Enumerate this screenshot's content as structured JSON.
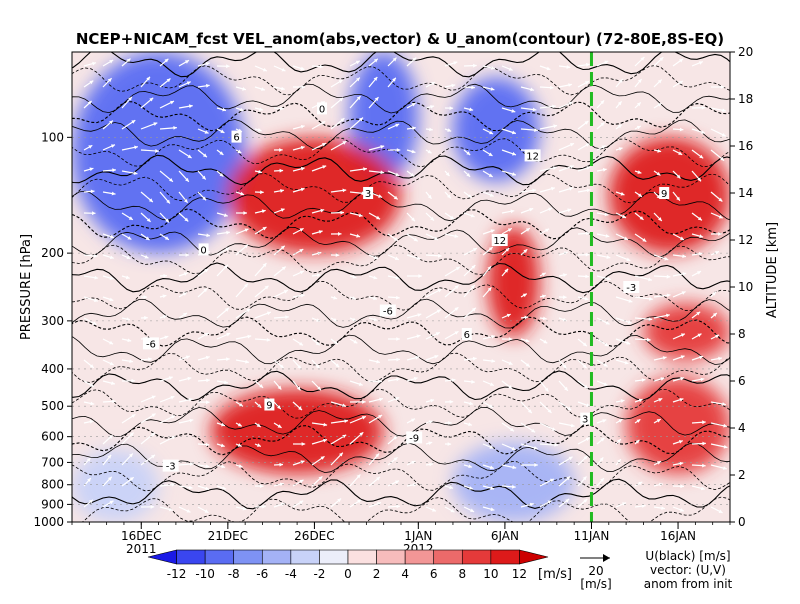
{
  "chart_data": {
    "type": "heatmap",
    "title": "NCEP+NICAM_fcst VEL_anom(abs,vector) & U_anom(contour)   (72-80E,8S-EQ)",
    "ylabel_left": "PRESSURE [hPa]",
    "ylabel_right": "ALTITUDE [km]",
    "pressure_ticks": [
      100,
      200,
      300,
      400,
      500,
      600,
      700,
      800,
      900,
      1000
    ],
    "altitude_ticks": [
      0,
      2,
      4,
      6,
      8,
      10,
      12,
      14,
      16,
      18,
      20
    ],
    "date_ticks": [
      "16DEC",
      "21DEC",
      "26DEC",
      "1JAN",
      "6JAN",
      "11JAN",
      "16JAN"
    ],
    "year_labels": [
      "2011",
      "2012"
    ],
    "time_range": [
      "2011-12-12",
      "2012-01-19"
    ],
    "forecast_init_marker": "11JAN",
    "forecast_init_color": "#22bb22",
    "colorbar": {
      "levels": [
        -12,
        -10,
        -8,
        -6,
        -4,
        -2,
        0,
        2,
        4,
        6,
        8,
        10,
        12
      ],
      "unit": "[m/s]",
      "colors": [
        "#1a1ae6",
        "#3a46f0",
        "#5a6cf2",
        "#7e92f4",
        "#a4b2f6",
        "#c8d2f8",
        "#eceefa",
        "#fbe0e0",
        "#f7bcbc",
        "#f29696",
        "#ec6a6a",
        "#e53a3a",
        "#dd1a1a",
        "#cc0000"
      ]
    },
    "contour_labels": [
      "0",
      "3",
      "6",
      "9",
      "12",
      "-3",
      "-6",
      "-9"
    ],
    "vector_legend": {
      "value": "20",
      "unit": "[m/s]",
      "caption_lines": [
        "U(black) [m/s]",
        "vector: (U,V)",
        "anom from init"
      ]
    },
    "anomaly_regions": [
      {
        "x_range": [
          "2011-12-12",
          "2011-12-22"
        ],
        "p_range": [
          60,
          200
        ],
        "anom": -10
      },
      {
        "x_range": [
          "2011-12-28",
          "2012-01-01"
        ],
        "p_range": [
          60,
          130
        ],
        "anom": -9
      },
      {
        "x_range": [
          "2012-01-03",
          "2012-01-08"
        ],
        "p_range": [
          70,
          130
        ],
        "anom": -9
      },
      {
        "x_range": [
          "2011-12-21",
          "2011-12-31"
        ],
        "p_range": [
          100,
          200
        ],
        "anom": 11
      },
      {
        "x_range": [
          "2012-01-05",
          "2012-01-08"
        ],
        "p_range": [
          170,
          330
        ],
        "anom": 11
      },
      {
        "x_range": [
          "2011-12-20",
          "2011-12-30"
        ],
        "p_range": [
          450,
          750
        ],
        "anom": 10
      },
      {
        "x_range": [
          "2012-01-12",
          "2012-01-19"
        ],
        "p_range": [
          100,
          200
        ],
        "anom": 11
      },
      {
        "x_range": [
          "2012-01-14",
          "2012-01-19"
        ],
        "p_range": [
          270,
          380
        ],
        "anom": 9
      },
      {
        "x_range": [
          "2012-01-13",
          "2012-01-19"
        ],
        "p_range": [
          420,
          750
        ],
        "anom": 8
      },
      {
        "x_range": [
          "2011-12-12",
          "2011-12-17"
        ],
        "p_range": [
          650,
          1000
        ],
        "anom": -4
      },
      {
        "x_range": [
          "2012-01-03",
          "2012-01-10"
        ],
        "p_range": [
          620,
          1000
        ],
        "anom": -5
      }
    ]
  }
}
